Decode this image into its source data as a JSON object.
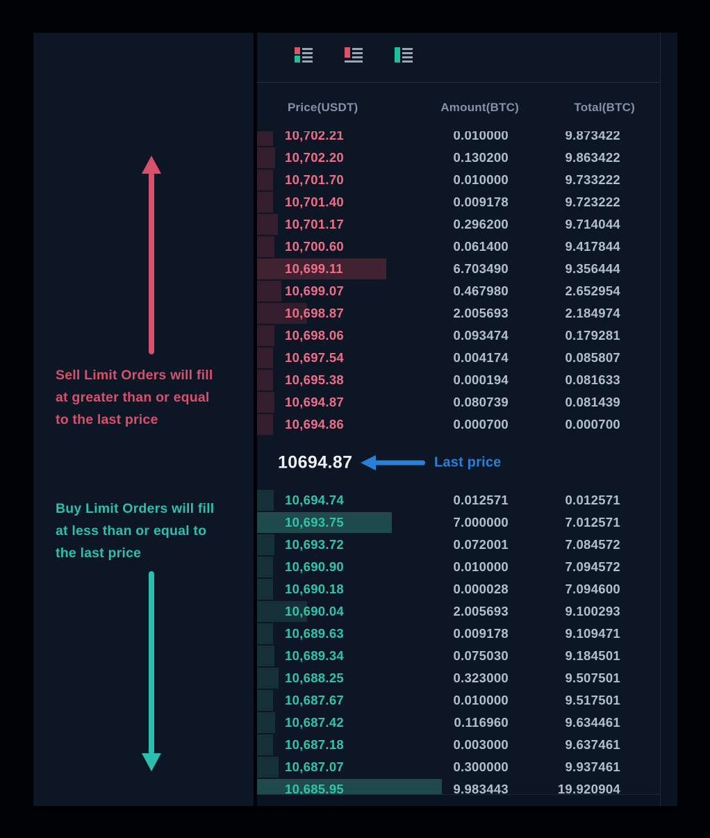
{
  "left_panel": {
    "sell_note": {
      "lines": [
        "Sell Limit Orders will fill",
        "at greater than or equal",
        "to the last price"
      ]
    },
    "buy_note": {
      "lines": [
        "Buy Limit Orders will fill",
        "at less than or equal to",
        "the last price"
      ]
    }
  },
  "orderbook": {
    "view_icons": [
      "combined-book-view-icon",
      "asks-only-view-icon",
      "bids-only-view-icon"
    ],
    "columns": {
      "price": "Price(USDT)",
      "amount": "Amount(BTC)",
      "total": "Total(BTC)"
    },
    "asks": [
      {
        "price": "10,702.21",
        "amount": "0.010000",
        "total": "9.873422"
      },
      {
        "price": "10,702.20",
        "amount": "0.130200",
        "total": "9.863422"
      },
      {
        "price": "10,701.70",
        "amount": "0.010000",
        "total": "9.733222"
      },
      {
        "price": "10,701.40",
        "amount": "0.009178",
        "total": "9.723222"
      },
      {
        "price": "10,701.17",
        "amount": "0.296200",
        "total": "9.714044"
      },
      {
        "price": "10,700.60",
        "amount": "0.061400",
        "total": "9.417844"
      },
      {
        "price": "10,699.11",
        "amount": "6.703490",
        "total": "9.356444",
        "highlight": true
      },
      {
        "price": "10,699.07",
        "amount": "0.467980",
        "total": "2.652954"
      },
      {
        "price": "10,698.87",
        "amount": "2.005693",
        "total": "2.184974"
      },
      {
        "price": "10,698.06",
        "amount": "0.093474",
        "total": "0.179281"
      },
      {
        "price": "10,697.54",
        "amount": "0.004174",
        "total": "0.085807"
      },
      {
        "price": "10,695.38",
        "amount": "0.000194",
        "total": "0.081633"
      },
      {
        "price": "10,694.87",
        "amount": "0.080739",
        "total": "0.081439"
      },
      {
        "price": "10,694.86",
        "amount": "0.000700",
        "total": "0.000700"
      }
    ],
    "last_price": {
      "value": "10694.87",
      "label": "Last price"
    },
    "bids": [
      {
        "price": "10,694.74",
        "amount": "0.012571",
        "total": "0.012571"
      },
      {
        "price": "10,693.75",
        "amount": "7.000000",
        "total": "7.012571",
        "highlight": true
      },
      {
        "price": "10,693.72",
        "amount": "0.072001",
        "total": "7.084572"
      },
      {
        "price": "10,690.90",
        "amount": "0.010000",
        "total": "7.094572"
      },
      {
        "price": "10,690.18",
        "amount": "0.000028",
        "total": "7.094600"
      },
      {
        "price": "10,690.04",
        "amount": "2.005693",
        "total": "9.100293"
      },
      {
        "price": "10,689.63",
        "amount": "0.009178",
        "total": "9.109471"
      },
      {
        "price": "10,689.34",
        "amount": "0.075030",
        "total": "9.184501"
      },
      {
        "price": "10,688.25",
        "amount": "0.323000",
        "total": "9.507501"
      },
      {
        "price": "10,687.67",
        "amount": "0.010000",
        "total": "9.517501"
      },
      {
        "price": "10,687.42",
        "amount": "0.116960",
        "total": "9.634461"
      },
      {
        "price": "10,687.18",
        "amount": "0.003000",
        "total": "9.637461"
      },
      {
        "price": "10,687.07",
        "amount": "0.300000",
        "total": "9.937461"
      },
      {
        "price": "10,685.95",
        "amount": "9.983443",
        "total": "19.920904",
        "highlight": true
      }
    ]
  },
  "colors": {
    "ask_text": "#ef6e87",
    "bid_text": "#2fc4ac",
    "ask_bar": "#341d2c",
    "ask_bar_highlight": "#412231",
    "bid_bar": "#163238",
    "bid_bar_highlight": "#1e4a4c",
    "neutral_text": "#b3bfce",
    "annotation_sell": "#d9506c",
    "annotation_buy": "#2cbfad",
    "last_price_blue": "#2a80d6",
    "icon_red": "#d9566a",
    "icon_green": "#1fbf9c"
  }
}
